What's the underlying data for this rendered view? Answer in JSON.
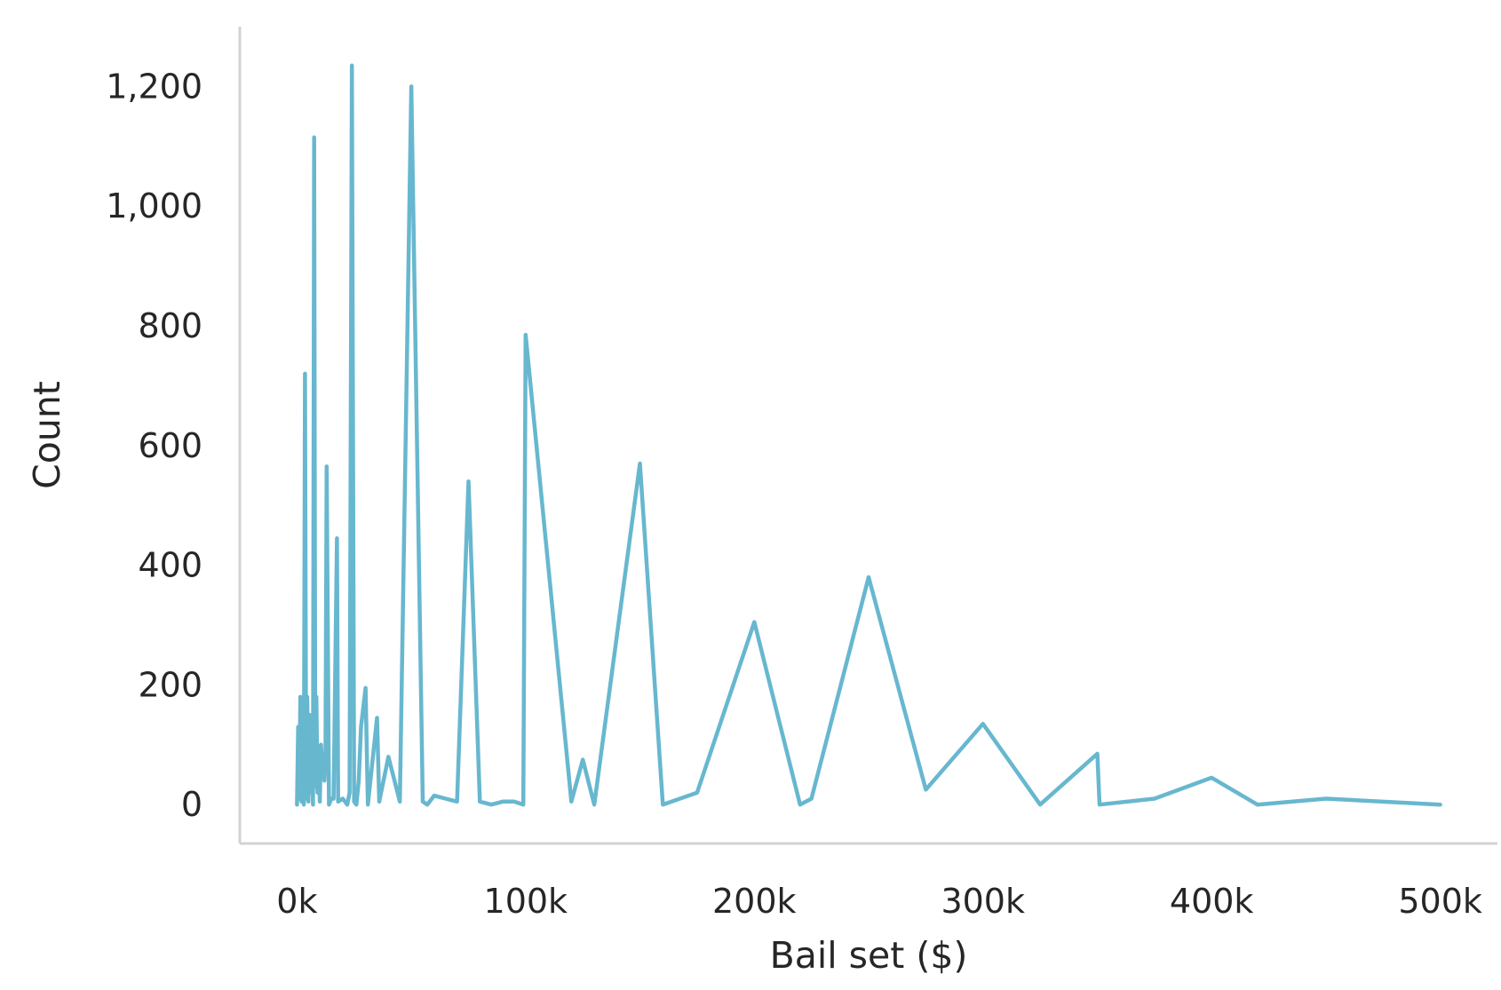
{
  "chart_data": {
    "type": "line",
    "title": "",
    "xlabel": "Bail set ($)",
    "ylabel": "Count",
    "xlim": [
      -25000,
      525000
    ],
    "ylim": [
      -65,
      1300
    ],
    "xticks": [
      {
        "value": 0,
        "label": "0k"
      },
      {
        "value": 100000,
        "label": "100k"
      },
      {
        "value": 200000,
        "label": "200k"
      },
      {
        "value": 300000,
        "label": "300k"
      },
      {
        "value": 400000,
        "label": "400k"
      },
      {
        "value": 500000,
        "label": "500k"
      }
    ],
    "yticks": [
      {
        "value": 0,
        "label": "0"
      },
      {
        "value": 200,
        "label": "200"
      },
      {
        "value": 400,
        "label": "400"
      },
      {
        "value": 600,
        "label": "600"
      },
      {
        "value": 800,
        "label": "800"
      },
      {
        "value": 1000,
        "label": "1,000"
      },
      {
        "value": 1200,
        "label": "1,200"
      }
    ],
    "grid": false,
    "line_color": "#67b7cf",
    "axis_color": "#d3d3d3",
    "series": [
      {
        "x": [
          0,
          500,
          1000,
          1500,
          2000,
          2500,
          3000,
          3500,
          4000,
          4500,
          5000,
          5500,
          6000,
          6500,
          7000,
          7500,
          8000,
          8500,
          9000,
          9500,
          10000,
          10500,
          11000,
          12000,
          12500,
          13000,
          14000,
          15000,
          16000,
          17500,
          18000,
          20000,
          21000,
          22000,
          23000,
          24000,
          25000,
          26000,
          27000,
          28000,
          30000,
          31000,
          35000,
          36000,
          40000,
          45000,
          50000,
          55000,
          57000,
          60000,
          65000,
          70000,
          75000,
          80000,
          85000,
          90000,
          95000,
          99000,
          100000,
          120000,
          125000,
          130000,
          150000,
          160000,
          175000,
          200000,
          220000,
          225000,
          250000,
          275000,
          300000,
          325000,
          350000,
          351000,
          375000,
          400000,
          420000,
          450000,
          500000
        ],
        "y": [
          0,
          130,
          10,
          180,
          5,
          175,
          0,
          720,
          10,
          180,
          5,
          150,
          20,
          100,
          0,
          1115,
          30,
          180,
          20,
          60,
          5,
          100,
          60,
          40,
          90,
          565,
          0,
          10,
          10,
          445,
          5,
          10,
          5,
          0,
          20,
          1235,
          5,
          0,
          40,
          130,
          195,
          0,
          145,
          5,
          80,
          5,
          1200,
          5,
          0,
          15,
          10,
          5,
          540,
          5,
          0,
          5,
          5,
          0,
          785,
          5,
          75,
          0,
          570,
          0,
          20,
          305,
          0,
          10,
          380,
          25,
          135,
          0,
          85,
          0,
          10,
          45,
          0,
          10,
          0
        ]
      }
    ]
  }
}
